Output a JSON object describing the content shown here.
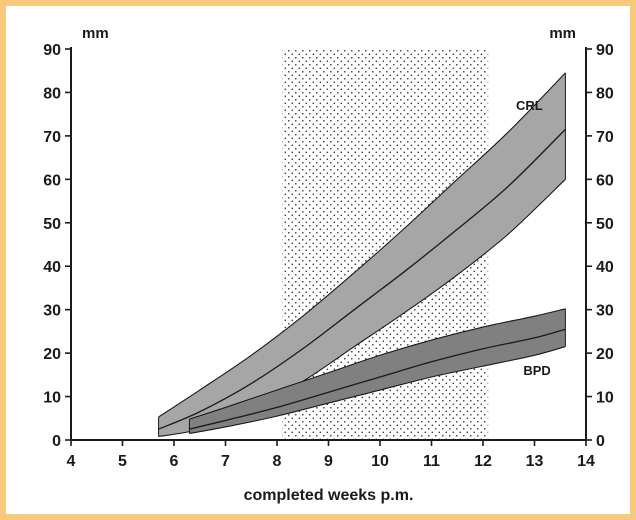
{
  "chart_data": {
    "type": "area",
    "title": "",
    "xlabel": "completed weeks p.m.",
    "ylabel_left": "mm",
    "ylabel_right": "mm",
    "xlim": [
      4,
      14
    ],
    "ylim": [
      0,
      90
    ],
    "x_ticks": [
      4,
      5,
      6,
      7,
      8,
      9,
      10,
      11,
      12,
      13,
      14
    ],
    "y_ticks": [
      0,
      10,
      20,
      30,
      40,
      50,
      60,
      70,
      80,
      90
    ],
    "grid": false,
    "shaded_region": {
      "x_start": 8.1,
      "x_end": 12.1,
      "pattern": "dots"
    },
    "series": [
      {
        "name": "CRL",
        "x": [
          5.7,
          6.5,
          7.5,
          8.5,
          9.5,
          10.5,
          11.5,
          12.5,
          13.6
        ],
        "mean": [
          2.5,
          6.5,
          13,
          21,
          30,
          39,
          48.5,
          58.5,
          71.5
        ],
        "lower": [
          0.8,
          2.5,
          7,
          13.5,
          21.5,
          29.5,
          38,
          47.5,
          60
        ],
        "upper": [
          5.3,
          11.5,
          19.5,
          28.5,
          38.5,
          49,
          60,
          71,
          84.5
        ],
        "fill": "#a6a6a6"
      },
      {
        "name": "BPD",
        "x": [
          6.3,
          7,
          8,
          9,
          10,
          11,
          12,
          13,
          13.6
        ],
        "mean": [
          2.5,
          4.5,
          7.5,
          11,
          14.5,
          18,
          21,
          23.5,
          25.5
        ],
        "lower": [
          1.5,
          3,
          5.5,
          8.5,
          11.5,
          14.5,
          17,
          19.5,
          21.5
        ],
        "upper": [
          4.8,
          7.5,
          11.5,
          15.5,
          19.5,
          23,
          26,
          28.5,
          30.2
        ],
        "fill": "#808080"
      }
    ]
  }
}
